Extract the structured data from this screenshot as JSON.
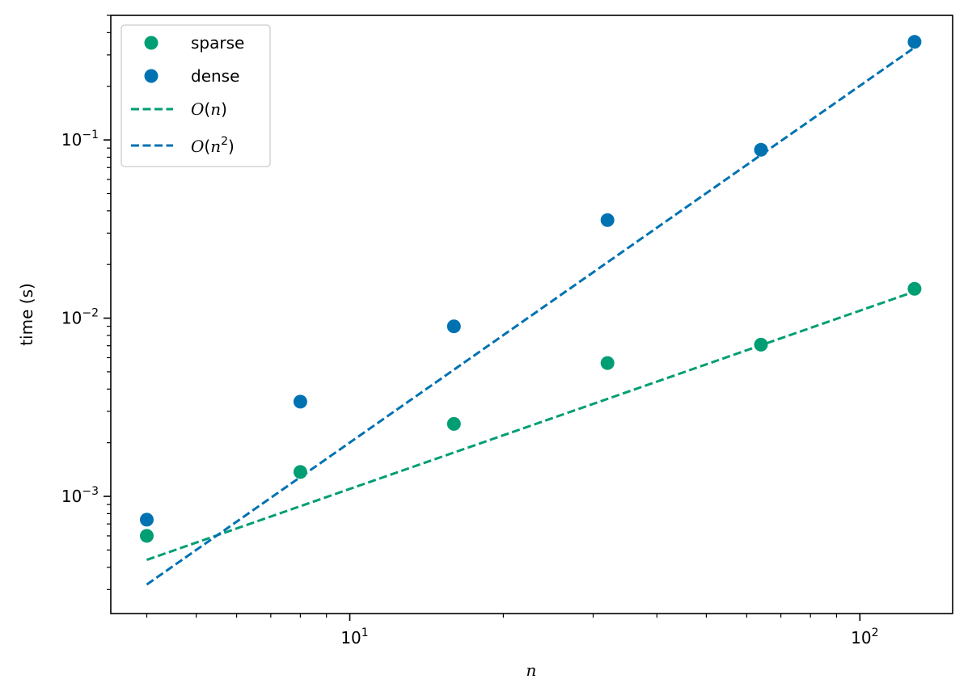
{
  "chart_data": {
    "type": "scatter",
    "xlabel": "n",
    "ylabel": "time (s)",
    "xscale": "log",
    "yscale": "log",
    "xlim": [
      3.4,
      152
    ],
    "ylim": [
      0.00022,
      0.5
    ],
    "x_ticks": [
      {
        "value": 10,
        "base": "10",
        "exp": "1"
      },
      {
        "value": 100,
        "base": "10",
        "exp": "2"
      }
    ],
    "y_ticks": [
      {
        "value": 0.001,
        "base": "10",
        "exp": "−3"
      },
      {
        "value": 0.01,
        "base": "10",
        "exp": "−2"
      },
      {
        "value": 0.1,
        "base": "10",
        "exp": "−1"
      }
    ],
    "grid": false,
    "legend_position": "top-left",
    "colors": {
      "sparse": "#009E73",
      "dense": "#0072B2"
    },
    "series": [
      {
        "name": "sparse",
        "kind": "points",
        "color": "#009E73",
        "x": [
          4,
          8,
          16,
          32,
          64,
          128
        ],
        "y": [
          0.0006,
          0.00137,
          0.00255,
          0.0056,
          0.0071,
          0.0146
        ]
      },
      {
        "name": "dense",
        "kind": "points",
        "color": "#0072B2",
        "x": [
          4,
          8,
          16,
          32,
          64,
          128
        ],
        "y": [
          0.00074,
          0.0034,
          0.009,
          0.0355,
          0.088,
          0.355
        ]
      },
      {
        "name": "O(n)",
        "kind": "dashed-line",
        "color": "#009E73",
        "x": [
          4,
          128
        ],
        "y": [
          0.00044,
          0.0141
        ]
      },
      {
        "name": "O(n²)",
        "kind": "dashed-line",
        "color": "#0072B2",
        "x": [
          4,
          128
        ],
        "y": [
          0.00032,
          0.33
        ]
      }
    ],
    "legend": [
      {
        "label": "sparse",
        "marker": "point",
        "color": "#009E73"
      },
      {
        "label": "dense",
        "marker": "point",
        "color": "#0072B2"
      },
      {
        "label_main": "O",
        "label_open": "(",
        "label_var": "n",
        "label_sup": "",
        "label_close": ")",
        "marker": "dashed-line",
        "color": "#009E73"
      },
      {
        "label_main": "O",
        "label_open": "(",
        "label_var": "n",
        "label_sup": "2",
        "label_close": ")",
        "marker": "dashed-line",
        "color": "#0072B2"
      }
    ]
  }
}
